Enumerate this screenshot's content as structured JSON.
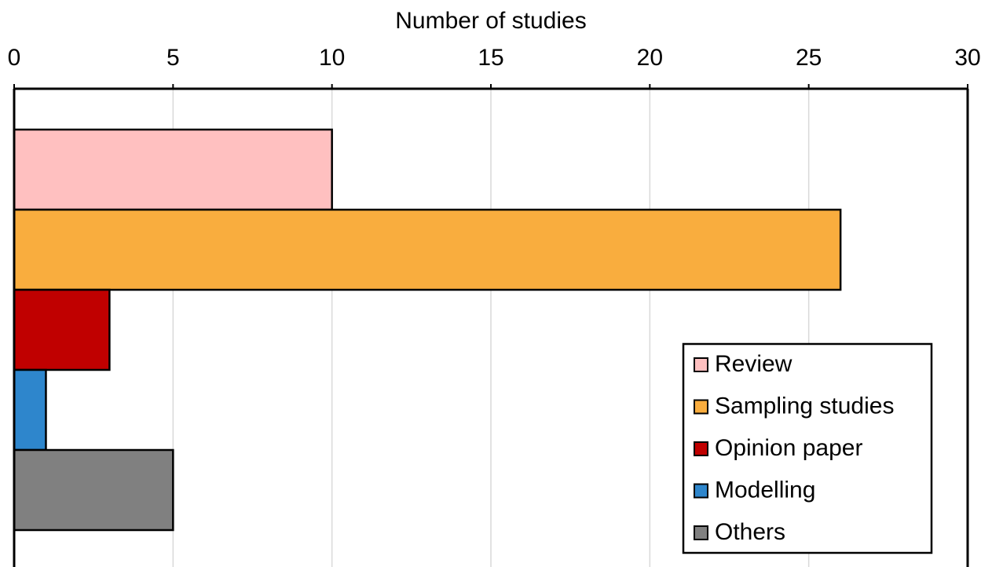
{
  "chart_data": {
    "type": "bar",
    "orientation": "horizontal",
    "xlabel": "Number of studies",
    "categories": [
      "Review",
      "Sampling studies",
      "Opinion paper",
      "Modelling",
      "Others"
    ],
    "values": [
      10,
      26,
      3,
      1,
      5
    ],
    "colors": [
      "#ffc0c0",
      "#f9ad3e",
      "#c00000",
      "#2e86cc",
      "#808080"
    ],
    "xlim": [
      0,
      30
    ],
    "xticks": [
      0,
      5,
      10,
      15,
      20,
      25,
      30
    ],
    "grid": true,
    "legend": "lower right"
  }
}
